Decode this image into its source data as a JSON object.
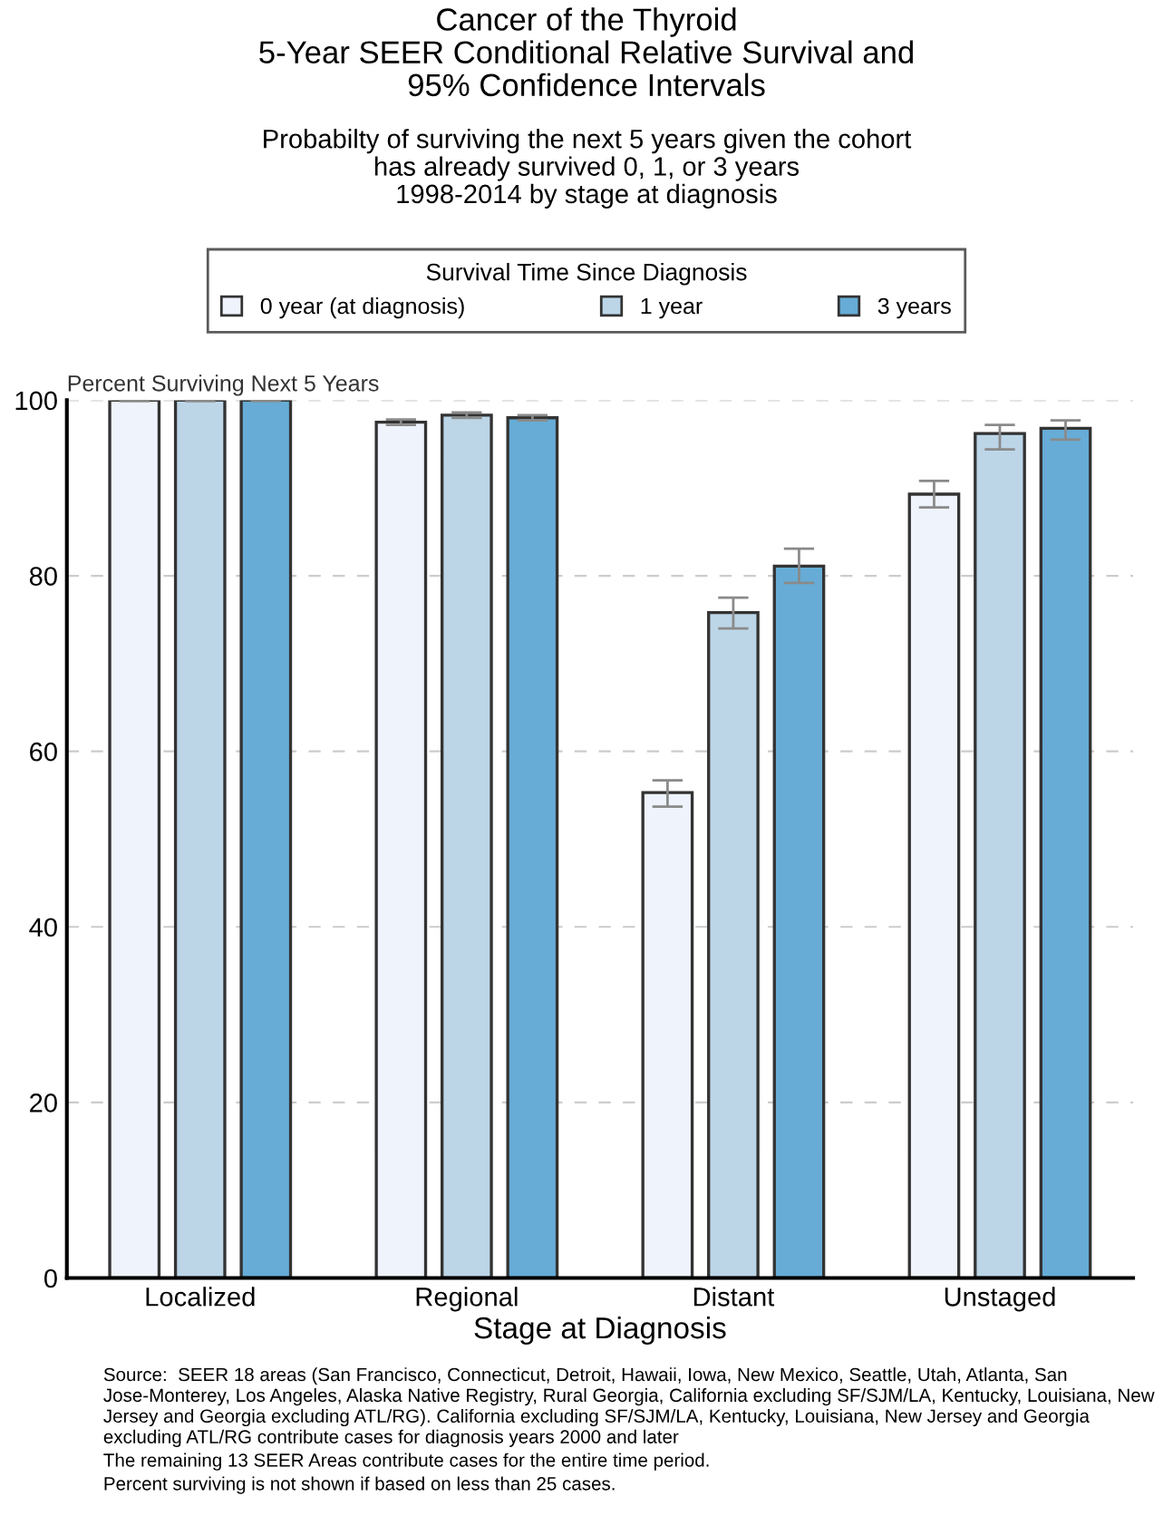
{
  "chart_data": {
    "type": "bar",
    "title": "Cancer of the Thyroid\n5-Year SEER Conditional Relative Survival and\n95% Confidence Intervals",
    "subtitle": "Probabilty of surviving the next 5 years given the cohort\nhas already survived 0, 1, or 3 years\n1998-2014 by stage at diagnosis",
    "xlabel": "Stage at Diagnosis",
    "ylabel": "Percent Surviving Next 5 Years",
    "legend_title": "Survival Time Since Diagnosis",
    "categories": [
      "Localized",
      "Regional",
      "Distant",
      "Unstaged"
    ],
    "series": [
      {
        "name": "0 year (at diagnosis)",
        "color": "#eef3fc",
        "values": [
          100,
          97.5,
          55.3,
          89.3
        ],
        "errors": [
          0.1,
          0.3,
          [
            53.7,
            56.7
          ],
          [
            87.8,
            90.8
          ]
        ]
      },
      {
        "name": "1 year",
        "color": "#bcd6e8",
        "values": [
          100,
          98.3,
          75.8,
          96.2
        ],
        "errors": [
          0.1,
          0.3,
          [
            74.0,
            77.5
          ],
          [
            94.4,
            97.2
          ]
        ]
      },
      {
        "name": "3 years",
        "color": "#66acd6",
        "values": [
          100,
          98.0,
          81.1,
          96.8
        ],
        "errors": [
          0.1,
          0.3,
          [
            79.2,
            83.1
          ],
          [
            95.5,
            97.7
          ]
        ]
      }
    ],
    "ylim": [
      0,
      100
    ],
    "yticks": [
      0,
      20,
      40,
      60,
      80,
      100
    ],
    "grid": "y",
    "legend": "top",
    "annotations": [
      "Source:  SEER 18 areas (San Francisco, Connecticut, Detroit, Hawaii, Iowa, New Mexico, Seattle, Utah, Atlanta, San Jose-Monterey, Los Angeles, Alaska Native Registry, Rural Georgia, California excluding SF/SJM/LA, Kentucky, Louisiana, New Jersey and Georgia excluding ATL/RG). California excluding SF/SJM/LA, Kentucky, Louisiana, New Jersey and Georgia excluding ATL/RG contribute cases for diagnosis years 2000 and later",
      "The remaining 13 SEER Areas contribute cases for the entire time period.",
      "Percent surviving is not shown if based on less than 25 cases."
    ]
  }
}
